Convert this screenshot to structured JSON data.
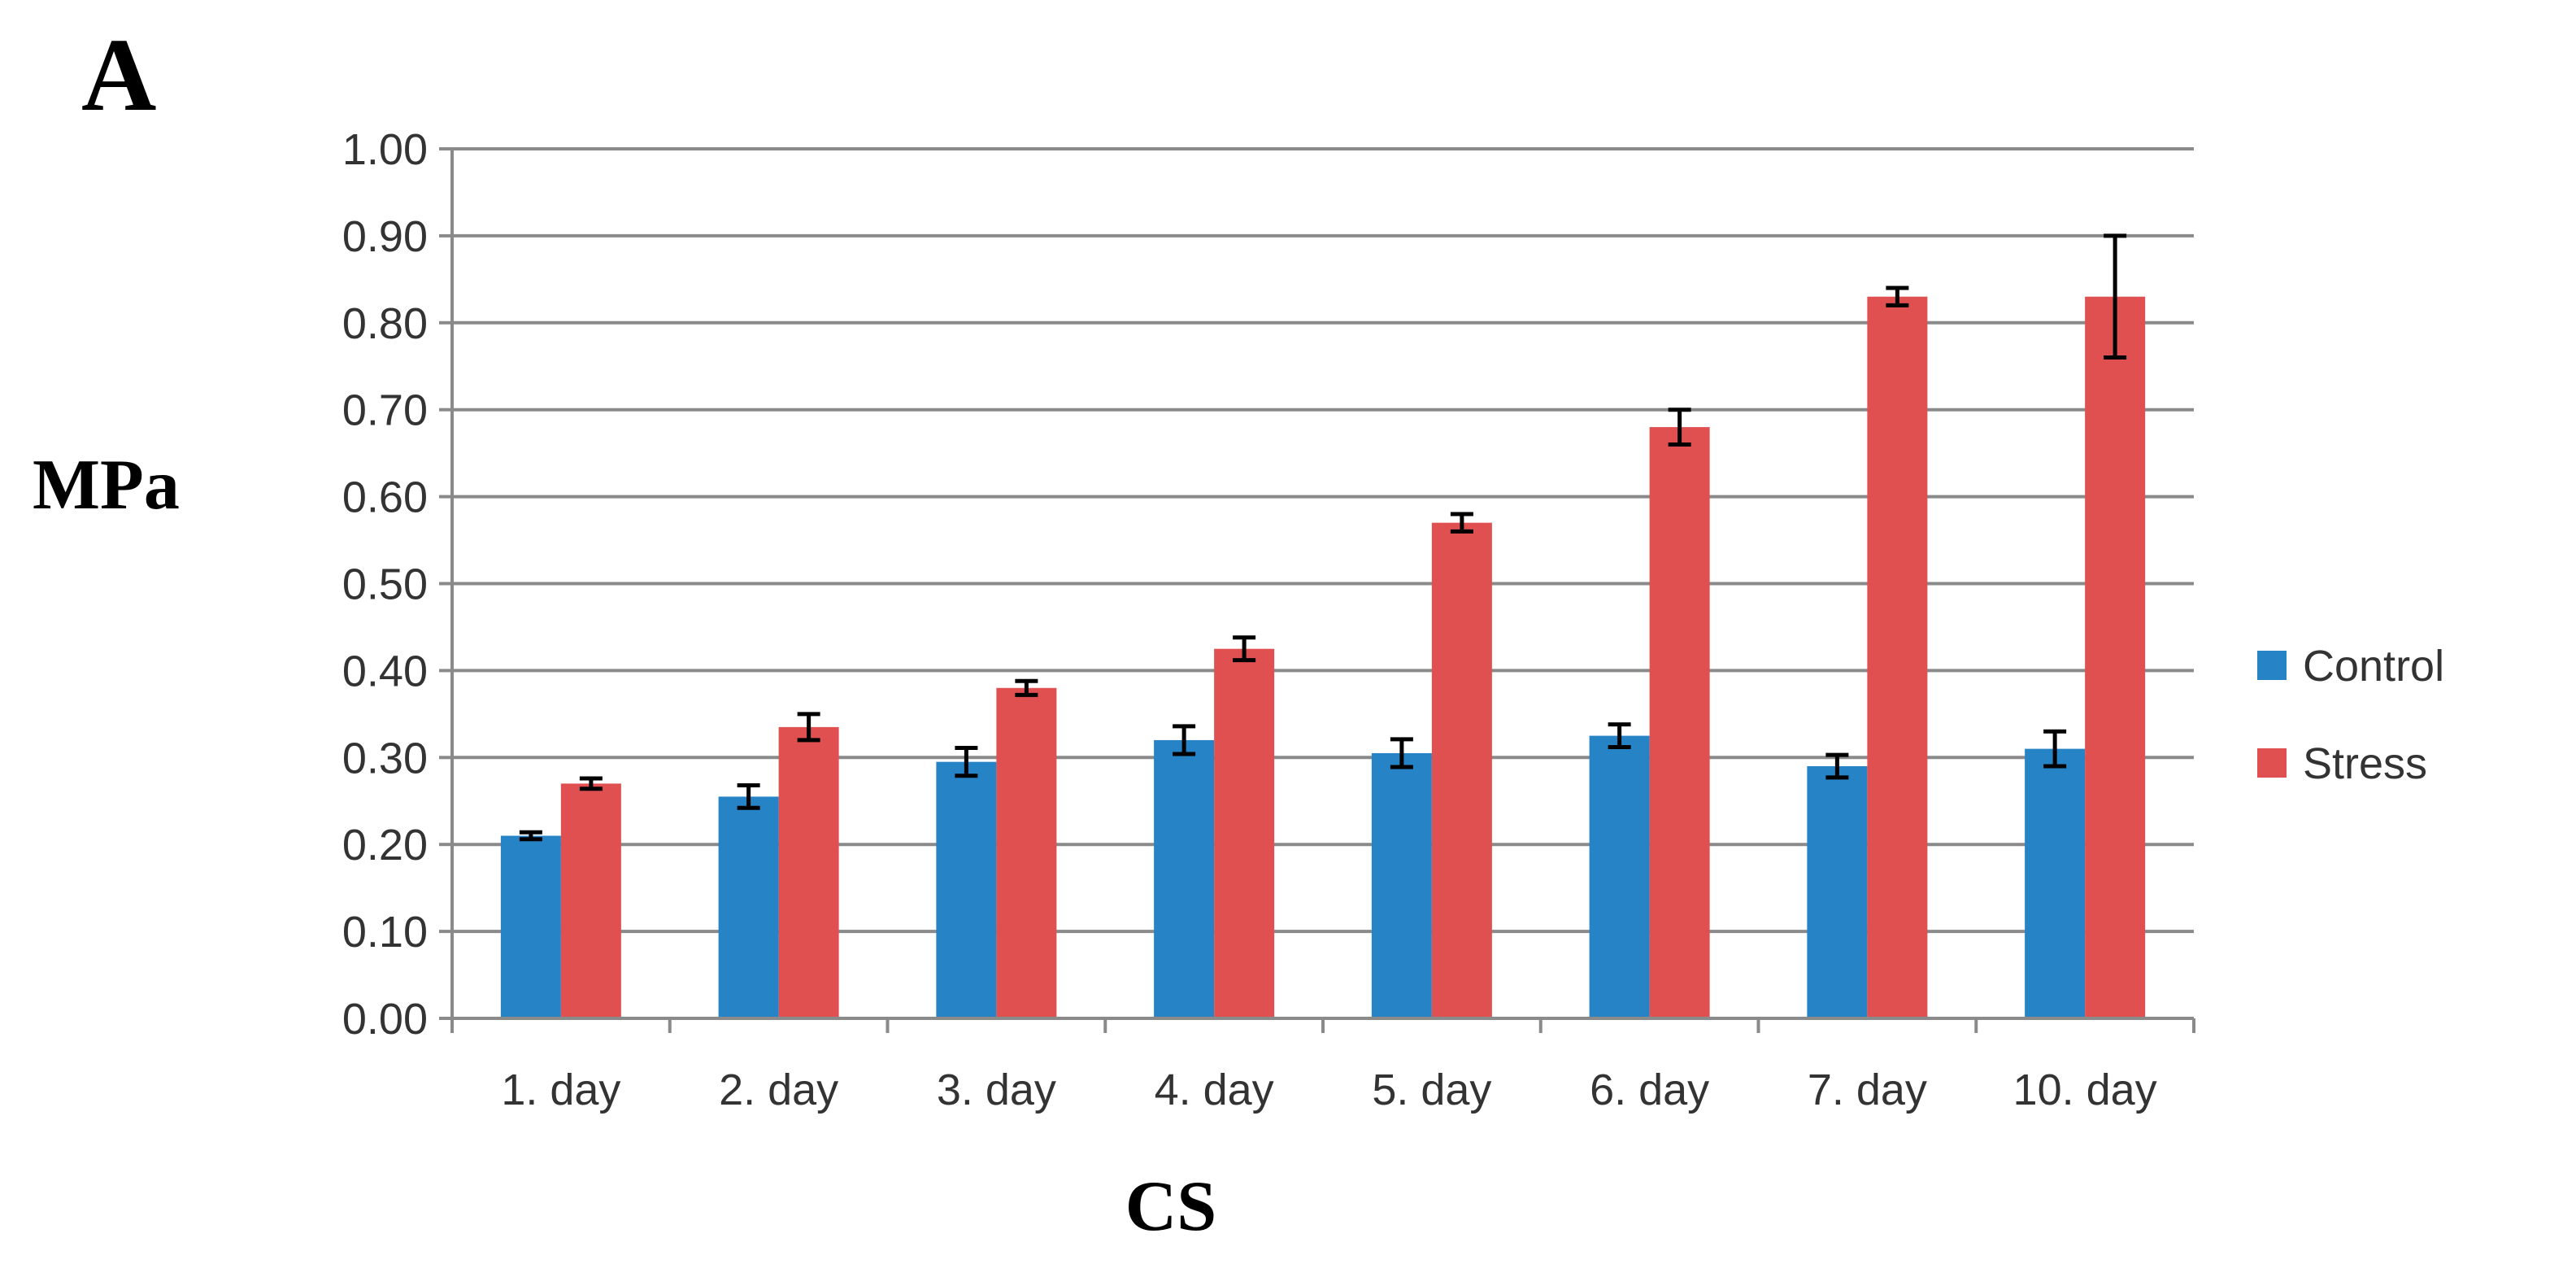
{
  "panel_label": "A",
  "chart_data": {
    "type": "bar",
    "xlabel": "CS",
    "ylabel": "MPa",
    "ylim": [
      0,
      1.0
    ],
    "ytick_step": 0.1,
    "ytick_labels": [
      "0.00",
      "0.10",
      "0.20",
      "0.30",
      "0.40",
      "0.50",
      "0.60",
      "0.70",
      "0.80",
      "0.90",
      "1.00"
    ],
    "grid": true,
    "legend_position": "right",
    "categories": [
      "1. day",
      "2. day",
      "3. day",
      "4. day",
      "5. day",
      "6. day",
      "7. day",
      "10. day"
    ],
    "series": [
      {
        "name": "Control",
        "color": "#2683c6",
        "values": [
          0.21,
          0.255,
          0.295,
          0.32,
          0.305,
          0.325,
          0.29,
          0.31
        ],
        "errors": [
          0.004,
          0.013,
          0.016,
          0.016,
          0.016,
          0.013,
          0.013,
          0.02
        ]
      },
      {
        "name": "Stress",
        "color": "#e05050",
        "values": [
          0.27,
          0.335,
          0.38,
          0.425,
          0.57,
          0.68,
          0.83,
          0.83
        ],
        "errors": [
          0.006,
          0.015,
          0.008,
          0.013,
          0.01,
          0.02,
          0.01,
          0.07
        ]
      }
    ]
  }
}
